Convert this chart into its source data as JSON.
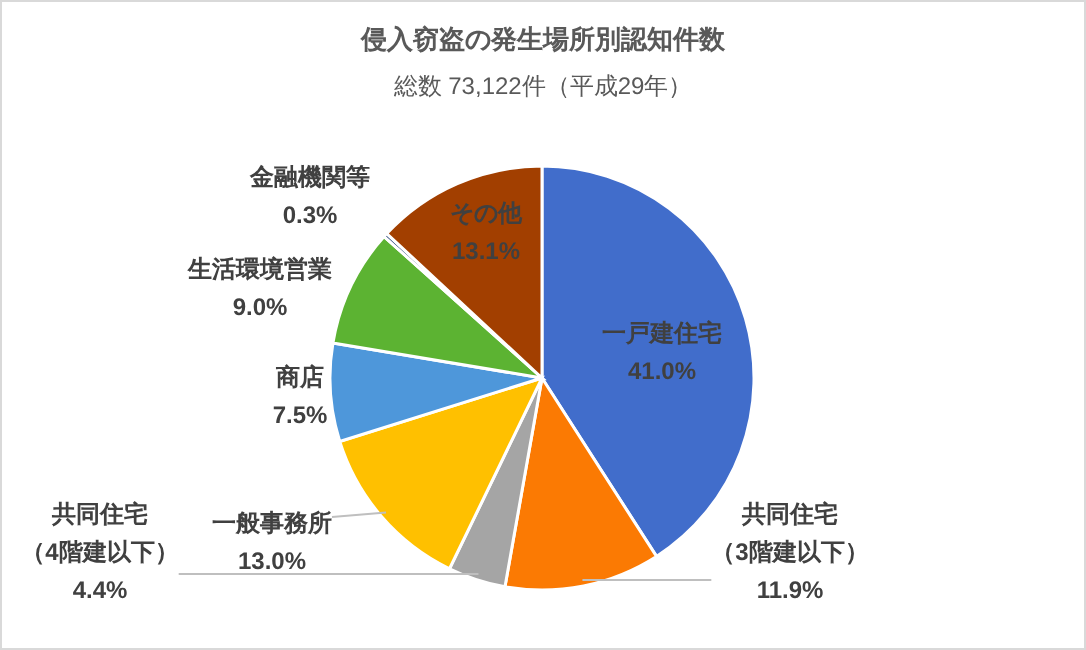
{
  "chart_data": {
    "type": "pie",
    "title": "侵入窃盗の発生場所別認知件数",
    "subtitle": "総数 73,122件（平成29年）",
    "categories": [
      "一戸建住宅",
      "共同住宅（3階建以下）",
      "共同住宅（4階建以下）",
      "一般事務所",
      "商店",
      "生活環境営業",
      "金融機関等",
      "その他"
    ],
    "values": [
      41.0,
      11.9,
      4.4,
      13.0,
      7.5,
      9.0,
      0.3,
      13.1
    ],
    "value_labels": [
      "41.0%",
      "11.9%",
      "4.4%",
      "13.0%",
      "7.5%",
      "9.0%",
      "0.3%",
      "13.1%"
    ],
    "colors": [
      "#416dcb",
      "#fb7a03",
      "#a5a5a5",
      "#ffc000",
      "#4e97da",
      "#5cb332",
      "#264478",
      "#a23f00"
    ]
  }
}
